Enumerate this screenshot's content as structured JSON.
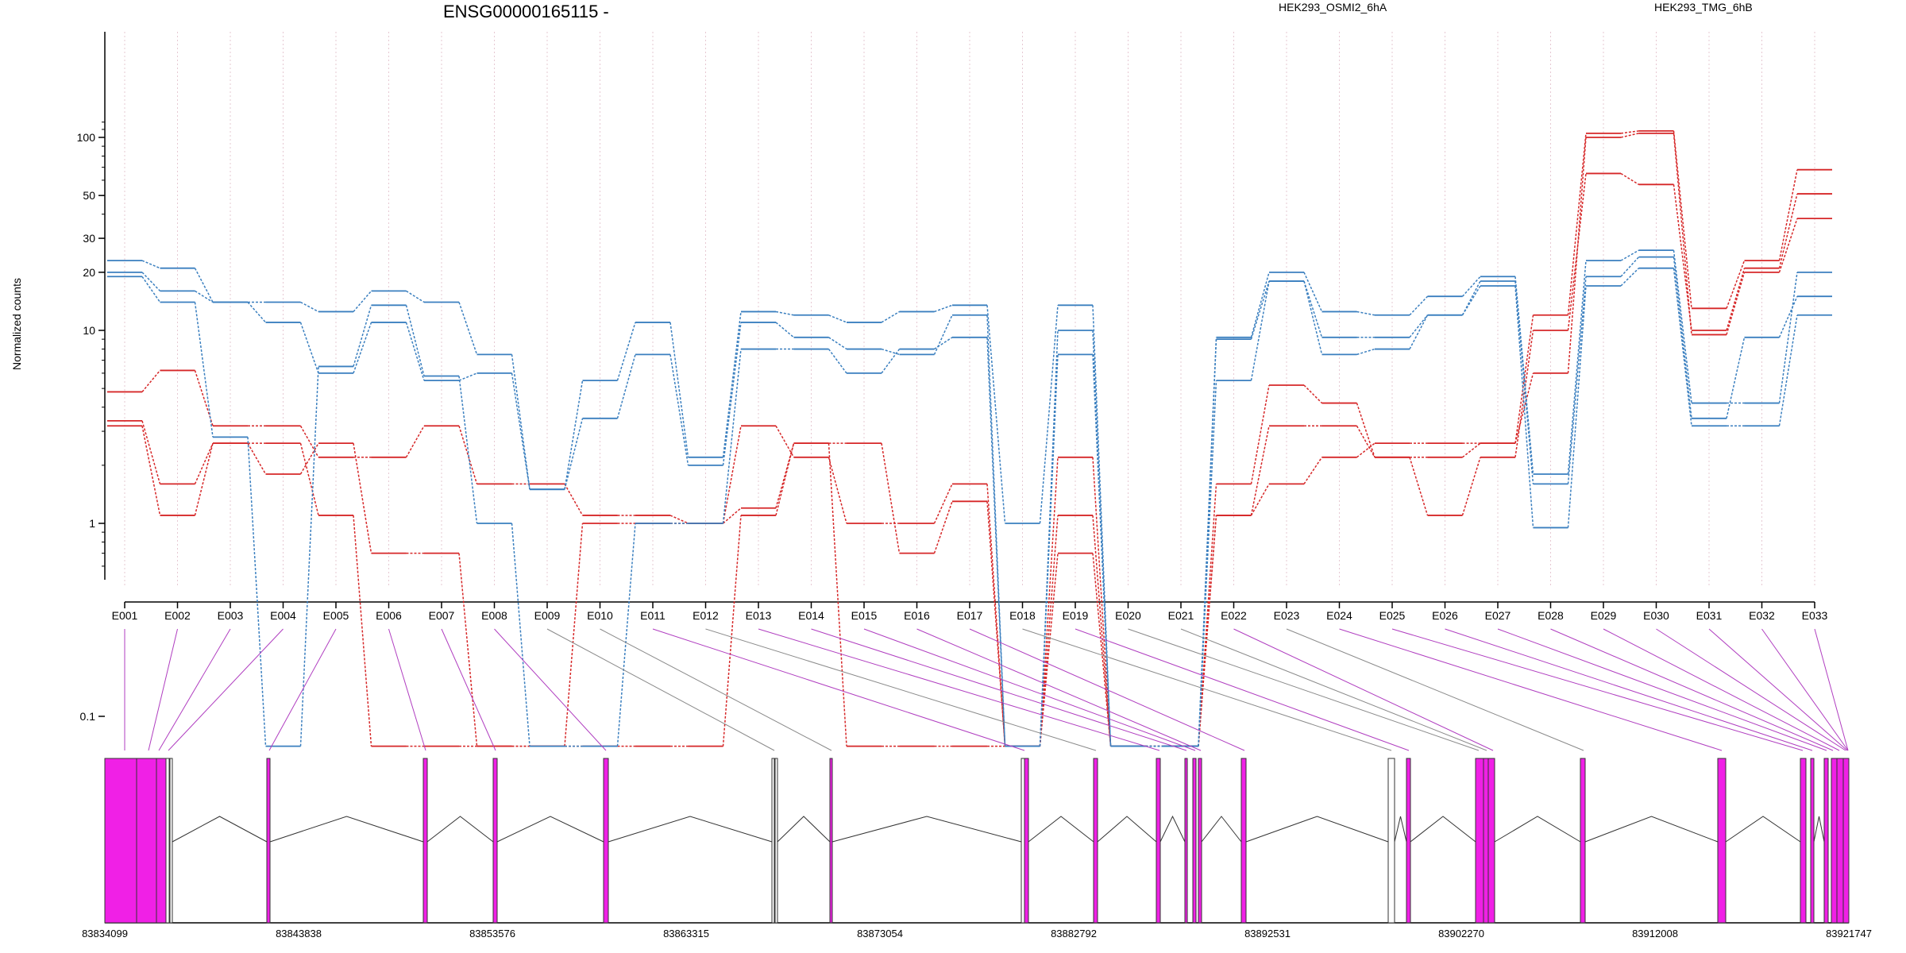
{
  "chart_data": {
    "type": "line",
    "title": "ENSG00000165115 -",
    "ylabel": "Normalized counts",
    "y_scale": "log",
    "y_ticks": [
      "0.1",
      "1",
      "10",
      "20",
      "30",
      "50",
      "100"
    ],
    "grid": "vertical dotted lines at each exon",
    "legend_placement": "top-right",
    "categories": [
      "E001",
      "E002",
      "E003",
      "E004",
      "E005",
      "E006",
      "E007",
      "E008",
      "E009",
      "E010",
      "E011",
      "E012",
      "E013",
      "E014",
      "E015",
      "E016",
      "E017",
      "E018",
      "E019",
      "E020",
      "E021",
      "E022",
      "E023",
      "E024",
      "E025",
      "E026",
      "E027",
      "E028",
      "E029",
      "E030",
      "E031",
      "E032",
      "E033"
    ],
    "groups": [
      {
        "name": "HEK293_OSMI2_6hA",
        "color": "#d62728"
      },
      {
        "name": "HEK293_TMG_6hB",
        "color": "#3a7fbf"
      }
    ],
    "series": [
      {
        "group": 0,
        "values": [
          4.8,
          6.2,
          3.2,
          3.2,
          2.2,
          2.2,
          3.2,
          1.6,
          1.6,
          1.1,
          1.1,
          1.0,
          3.2,
          2.2,
          1.0,
          1.0,
          1.6,
          0.07,
          2.2,
          0.07,
          0.07,
          1.6,
          5.2,
          4.2,
          2.2,
          2.2,
          2.6,
          12.0,
          105,
          108,
          13.0,
          23,
          68
        ]
      },
      {
        "group": 0,
        "values": [
          3.4,
          1.6,
          2.6,
          1.8,
          2.6,
          0.7,
          0.7,
          0.07,
          0.07,
          1.0,
          1.0,
          1.0,
          1.2,
          2.6,
          2.6,
          0.7,
          1.3,
          0.07,
          1.1,
          0.07,
          0.07,
          1.1,
          3.2,
          3.2,
          2.2,
          1.1,
          2.2,
          10.0,
          65,
          57,
          10.0,
          21,
          51
        ]
      },
      {
        "group": 0,
        "values": [
          3.2,
          1.1,
          2.6,
          2.6,
          1.1,
          0.07,
          0.07,
          0.07,
          0.07,
          0.07,
          0.07,
          0.07,
          1.1,
          2.6,
          0.07,
          0.07,
          0.07,
          0.07,
          0.7,
          0.07,
          0.07,
          1.1,
          1.6,
          2.2,
          2.6,
          2.6,
          2.6,
          6.0,
          100,
          105,
          9.5,
          20,
          38
        ]
      },
      {
        "group": 1,
        "values": [
          23,
          21,
          14,
          14,
          12.5,
          16,
          14,
          7.5,
          1.5,
          5.5,
          11,
          2.2,
          12.5,
          12,
          11,
          12.5,
          13.5,
          1.0,
          13.5,
          0.07,
          0.07,
          9.2,
          20,
          12.5,
          12,
          15,
          19,
          1.8,
          23,
          26,
          4.2,
          4.2,
          20
        ]
      },
      {
        "group": 1,
        "values": [
          20,
          16,
          14,
          11,
          6,
          11,
          5.5,
          6,
          1.5,
          3.5,
          7.5,
          2.0,
          11,
          9.2,
          8,
          7.5,
          12,
          0.07,
          7.5,
          0.07,
          0.07,
          9,
          18,
          9.2,
          9.2,
          12,
          18,
          1.6,
          19,
          24,
          3.5,
          9.2,
          15
        ]
      },
      {
        "group": 1,
        "values": [
          19,
          14,
          2.8,
          0.07,
          6.5,
          13.5,
          5.8,
          1.0,
          0.07,
          0.07,
          1.0,
          1.0,
          8,
          8,
          6,
          8,
          9.2,
          0.07,
          10,
          0.07,
          0.07,
          5.5,
          18,
          7.5,
          8,
          12,
          17,
          0.95,
          17,
          21,
          3.2,
          3.2,
          12
        ]
      }
    ],
    "gene_model": {
      "coordinates": [
        "83834099",
        "83843838",
        "83853576",
        "83863315",
        "83873054",
        "83882792",
        "83892531",
        "83902270",
        "83912008",
        "83921747"
      ]
    }
  }
}
